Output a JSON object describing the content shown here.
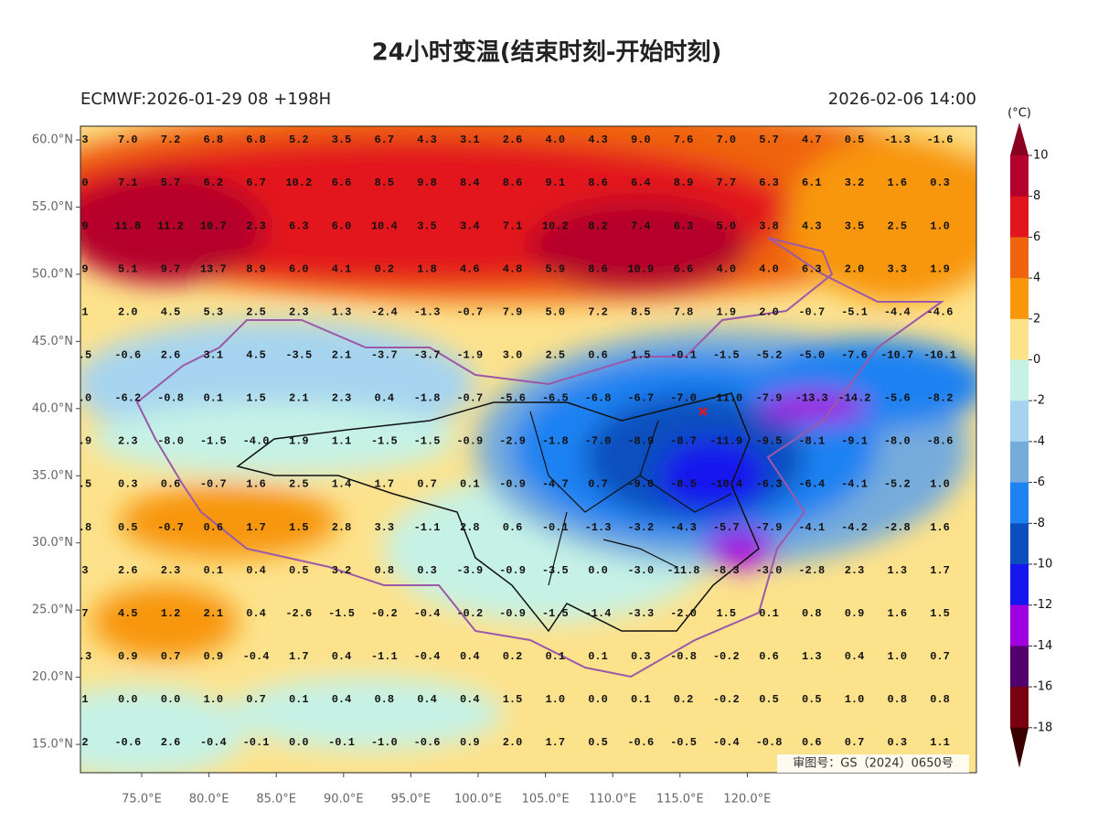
{
  "header": {
    "title": "24小时变温(结束时刻-开始时刻)",
    "model": "ECMWF:2026-01-29 08 +198H",
    "valid_time": "2026-02-06 14:00"
  },
  "map": {
    "lat_ticks": [
      {
        "value": 60,
        "label": "60.0°N"
      },
      {
        "value": 55,
        "label": "55.0°N"
      },
      {
        "value": 50,
        "label": "50.0°N"
      },
      {
        "value": 45,
        "label": "45.0°N"
      },
      {
        "value": 40,
        "label": "40.0°N"
      },
      {
        "value": 35,
        "label": "35.0°N"
      },
      {
        "value": 30,
        "label": "30.0°N"
      },
      {
        "value": 25,
        "label": "25.0°N"
      },
      {
        "value": 20,
        "label": "20.0°N"
      },
      {
        "value": 15,
        "label": "15.0°N"
      }
    ],
    "lon_ticks": [
      {
        "value": 75,
        "label": "75.0°E"
      },
      {
        "value": 80,
        "label": "80.0°E"
      },
      {
        "value": 85,
        "label": "85.0°E"
      },
      {
        "value": 90,
        "label": "90.0°E"
      },
      {
        "value": 95,
        "label": "95.0°E"
      },
      {
        "value": 100,
        "label": "100.0°E"
      },
      {
        "value": 105,
        "label": "105.0°E"
      },
      {
        "value": 110,
        "label": "110.0°E"
      },
      {
        "value": 115,
        "label": "115.0°E"
      },
      {
        "value": 120,
        "label": "120.0°E"
      }
    ],
    "grid_values": [
      [
        "3",
        "7.0",
        "7.2",
        "6.8",
        "6.8",
        "5.2",
        "3.5",
        "6.7",
        "4.3",
        "3.1",
        "2.6",
        "4.0",
        "4.3",
        "9.0",
        "7.6",
        "7.0",
        "5.7",
        "4.7",
        "0.5",
        "-1.3",
        "-1.6"
      ],
      [
        "0",
        "7.1",
        "5.7",
        "6.2",
        "6.7",
        "10.2",
        "6.6",
        "8.5",
        "9.8",
        "8.4",
        "8.6",
        "9.1",
        "8.6",
        "6.4",
        "8.9",
        "7.7",
        "6.3",
        "6.1",
        "3.2",
        "1.6",
        "0.3"
      ],
      [
        "9",
        "11.8",
        "11.2",
        "10.7",
        "2.3",
        "6.3",
        "6.0",
        "10.4",
        "3.5",
        "3.4",
        "7.1",
        "10.2",
        "8.2",
        "7.4",
        "6.3",
        "5.0",
        "3.8",
        "4.3",
        "3.5",
        "2.5",
        "1.0"
      ],
      [
        "9",
        "5.1",
        "9.7",
        "13.7",
        "8.9",
        "6.0",
        "4.1",
        "0.2",
        "1.8",
        "4.6",
        "4.8",
        "5.9",
        "8.6",
        "10.9",
        "6.6",
        "4.0",
        "4.0",
        "6.3",
        "2.0",
        "3.3",
        "1.9"
      ],
      [
        "1",
        "2.0",
        "4.5",
        "5.3",
        "2.5",
        "2.3",
        "1.3",
        "-2.4",
        "-1.3",
        "-0.7",
        "7.9",
        "5.0",
        "7.2",
        "8.5",
        "7.8",
        "1.9",
        "2.0",
        "-0.7",
        "-5.1",
        "-4.4",
        "-4.6"
      ],
      [
        ".5",
        "-0.6",
        "2.6",
        "3.1",
        "4.5",
        "-3.5",
        "2.1",
        "-3.7",
        "-3.7",
        "-1.9",
        "3.0",
        "2.5",
        "0.6",
        "1.5",
        "-0.1",
        "-1.5",
        "-5.2",
        "-5.0",
        "-7.6",
        "-10.7",
        "-10.1"
      ],
      [
        ".0",
        "-6.2",
        "-0.8",
        "0.1",
        "1.5",
        "2.1",
        "2.3",
        "0.4",
        "-1.8",
        "-0.7",
        "-5.6",
        "-6.5",
        "-6.8",
        "-6.7",
        "-7.0",
        "-11.0",
        "-7.9",
        "-13.3",
        "-14.2",
        "-5.6",
        "-8.2"
      ],
      [
        ".9",
        "2.3",
        "-8.0",
        "-1.5",
        "-4.0",
        "1.9",
        "1.1",
        "-1.5",
        "-1.5",
        "-0.9",
        "-2.9",
        "-1.8",
        "-7.0",
        "-8.9",
        "-8.7",
        "-11.9",
        "-9.5",
        "-8.1",
        "-9.1",
        "-8.0",
        "-8.6"
      ],
      [
        ".5",
        "0.3",
        "0.6",
        "-0.7",
        "1.6",
        "2.5",
        "1.4",
        "1.7",
        "0.7",
        "0.1",
        "-0.9",
        "-4.7",
        "0.7",
        "-9.0",
        "-8.5",
        "-10.4",
        "-6.3",
        "-6.4",
        "-4.1",
        "-5.2",
        "1.0"
      ],
      [
        ".8",
        "0.5",
        "-0.7",
        "0.6",
        "1.7",
        "1.5",
        "2.8",
        "3.3",
        "-1.1",
        "2.8",
        "0.6",
        "-0.1",
        "-1.3",
        "-3.2",
        "-4.3",
        "-5.7",
        "-7.9",
        "-4.1",
        "-4.2",
        "-2.8",
        "1.6"
      ],
      [
        "3",
        "2.6",
        "2.3",
        "0.1",
        "0.4",
        "0.5",
        "3.2",
        "0.8",
        "0.3",
        "-3.9",
        "-0.9",
        "-3.5",
        "0.0",
        "-3.0",
        "-11.8",
        "-8.3",
        "-3.0",
        "-2.8",
        "2.3",
        "1.3",
        "1.7"
      ],
      [
        "7",
        "4.5",
        "1.2",
        "2.1",
        "0.4",
        "-2.6",
        "-1.5",
        "-0.2",
        "-0.4",
        "-0.2",
        "-0.9",
        "-1.5",
        "-1.4",
        "-3.3",
        "-2.0",
        "1.5",
        "0.1",
        "0.8",
        "0.9",
        "1.6",
        "1.5"
      ],
      [
        ".3",
        "0.9",
        "0.7",
        "0.9",
        "-0.4",
        "1.7",
        "0.4",
        "-1.1",
        "-0.4",
        "0.4",
        "0.2",
        "0.1",
        "0.1",
        "0.3",
        "-0.8",
        "-0.2",
        "0.6",
        "1.3",
        "0.4",
        "1.0",
        "0.7"
      ],
      [
        "1",
        "0.0",
        "0.0",
        "1.0",
        "0.7",
        "0.1",
        "0.4",
        "0.8",
        "0.4",
        "0.4",
        "1.5",
        "1.0",
        "0.0",
        "0.1",
        "0.2",
        "-0.2",
        "0.5",
        "0.5",
        "1.0",
        "0.8",
        "0.8"
      ],
      [
        "2",
        "-0.6",
        "2.6",
        "-0.4",
        "-0.1",
        "0.0",
        "-0.1",
        "-1.0",
        "-0.6",
        "0.9",
        "2.0",
        "1.7",
        "0.5",
        "-0.6",
        "-0.5",
        "-0.4",
        "-0.8",
        "0.6",
        "0.7",
        "0.3",
        "1.1"
      ]
    ],
    "approval_no": "审图号：GS（2024）0650号"
  },
  "colorbar": {
    "unit": "(°C)",
    "levels": [
      10,
      8,
      6,
      4,
      2,
      0,
      -2,
      -4,
      -6,
      -8,
      -10,
      -12,
      -14,
      -16,
      -18
    ],
    "colors": [
      "#b4002c",
      "#e2141e",
      "#f0640f",
      "#f8960c",
      "#fde28c",
      "#c6f2e6",
      "#a6d4f0",
      "#76acdc",
      "#1e82f2",
      "#0b4fbe",
      "#1616ee",
      "#a000e0",
      "#52006e",
      "#7a0010"
    ],
    "over_color": "#8a0020",
    "under_color": "#3a0000"
  }
}
